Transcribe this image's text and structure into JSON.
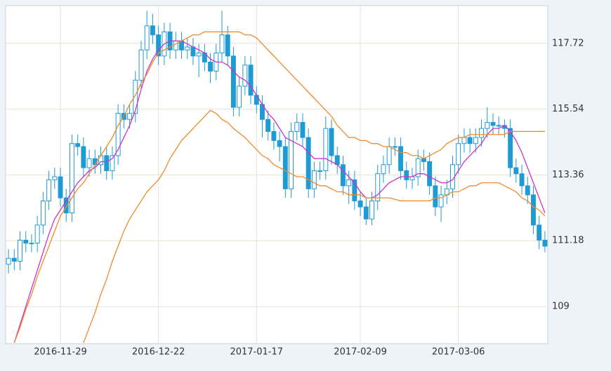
{
  "chart_data": {
    "type": "candlestick",
    "x": [
      null,
      null,
      null,
      null,
      null,
      null,
      null,
      null,
      null,
      "2016-11-29",
      null,
      null,
      null,
      null,
      null,
      null,
      null,
      null,
      null,
      null,
      null,
      null,
      null,
      null,
      null,
      null,
      "2016-12-22",
      null,
      null,
      null,
      null,
      null,
      null,
      null,
      null,
      null,
      null,
      null,
      null,
      null,
      null,
      null,
      null,
      "2017-01-17",
      null,
      null,
      null,
      null,
      null,
      null,
      null,
      null,
      null,
      null,
      null,
      null,
      null,
      null,
      null,
      null,
      null,
      "2017-02-09",
      null,
      null,
      null,
      null,
      null,
      null,
      null,
      null,
      null,
      null,
      null,
      null,
      null,
      null,
      null,
      null,
      "2017-03-06",
      null,
      null,
      null,
      null,
      null,
      null,
      null,
      null,
      null,
      null,
      null,
      null,
      null,
      null,
      null
    ],
    "open": [
      110.4,
      110.6,
      110.5,
      111.2,
      111.1,
      111.1,
      111.7,
      112.5,
      113.2,
      113.3,
      112.6,
      112.1,
      114.4,
      114.3,
      113.6,
      113.9,
      113.7,
      114.0,
      113.5,
      114.0,
      115.4,
      115.2,
      115.4,
      116.5,
      117.5,
      118.3,
      118.0,
      117.3,
      118.1,
      117.5,
      117.8,
      117.5,
      117.6,
      117.3,
      117.4,
      117.1,
      116.8,
      117.4,
      118.0,
      117.3,
      115.6,
      116.3,
      117.0,
      116.0,
      115.7,
      115.2,
      114.8,
      114.5,
      114.3,
      112.9,
      114.8,
      115.1,
      114.6,
      112.9,
      113.5,
      113.5,
      114.9,
      114.0,
      113.7,
      113.0,
      113.2,
      112.5,
      112.3,
      111.9,
      112.5,
      113.4,
      113.7,
      114.3,
      114.3,
      113.5,
      113.2,
      113.3,
      113.9,
      113.8,
      113.0,
      112.3,
      112.7,
      112.9,
      113.7,
      114.4,
      114.6,
      114.4,
      114.6,
      114.9,
      115.1,
      115.0,
      115.0,
      114.9,
      113.6,
      113.4,
      113.0,
      112.7,
      111.7,
      111.2
    ],
    "high": [
      110.9,
      110.9,
      111.5,
      111.5,
      111.4,
      112.0,
      112.8,
      113.5,
      113.6,
      113.6,
      112.9,
      114.7,
      114.7,
      114.6,
      114.2,
      114.2,
      114.3,
      114.3,
      114.3,
      115.7,
      115.7,
      115.7,
      116.8,
      117.8,
      118.8,
      118.7,
      118.3,
      118.4,
      118.4,
      118.1,
      118.1,
      117.9,
      117.9,
      117.7,
      117.7,
      117.4,
      117.7,
      118.8,
      118.3,
      117.6,
      116.6,
      117.3,
      117.3,
      116.3,
      116.0,
      115.5,
      115.1,
      114.8,
      114.6,
      115.1,
      115.4,
      115.4,
      114.9,
      113.8,
      113.8,
      115.3,
      115.2,
      114.3,
      114.0,
      113.5,
      113.5,
      112.8,
      112.6,
      112.8,
      113.7,
      114.0,
      114.6,
      114.6,
      114.6,
      113.8,
      113.6,
      114.2,
      114.2,
      114.1,
      113.3,
      113.0,
      113.2,
      114.0,
      114.7,
      114.9,
      114.9,
      114.9,
      115.2,
      115.6,
      115.4,
      115.3,
      115.2,
      115.2,
      113.9,
      113.7,
      113.3,
      113.0,
      112.0,
      111.5
    ],
    "low": [
      110.1,
      110.2,
      110.2,
      110.8,
      110.8,
      110.8,
      111.4,
      112.2,
      112.9,
      112.3,
      111.8,
      111.8,
      114.0,
      113.3,
      113.3,
      113.4,
      113.4,
      113.2,
      113.2,
      113.7,
      114.9,
      114.9,
      115.1,
      116.2,
      117.2,
      117.7,
      117.0,
      117.0,
      117.2,
      117.2,
      117.2,
      117.2,
      117.0,
      116.6,
      116.8,
      116.4,
      116.5,
      117.1,
      117.0,
      115.3,
      115.3,
      116.0,
      115.7,
      115.4,
      114.6,
      114.5,
      114.2,
      113.8,
      112.6,
      112.6,
      114.5,
      114.3,
      112.6,
      112.6,
      113.2,
      113.2,
      113.7,
      113.4,
      112.7,
      112.4,
      112.2,
      112.0,
      111.7,
      111.7,
      112.2,
      113.1,
      113.4,
      114.0,
      113.2,
      112.9,
      112.9,
      113.0,
      113.5,
      112.7,
      112.0,
      111.8,
      112.4,
      112.6,
      113.4,
      114.1,
      114.1,
      114.1,
      114.3,
      114.6,
      114.7,
      114.7,
      114.6,
      113.3,
      113.1,
      112.7,
      112.4,
      111.4,
      110.9,
      110.8
    ],
    "close": [
      110.6,
      110.5,
      111.2,
      111.1,
      111.1,
      111.7,
      112.5,
      113.2,
      113.3,
      112.6,
      112.1,
      114.4,
      114.3,
      113.6,
      113.9,
      113.7,
      114.0,
      113.5,
      114.0,
      115.4,
      115.2,
      115.4,
      116.5,
      117.5,
      118.3,
      118.0,
      117.3,
      118.1,
      117.5,
      117.8,
      117.5,
      117.6,
      117.3,
      117.4,
      117.1,
      116.8,
      117.4,
      118.0,
      117.3,
      115.6,
      116.3,
      117.0,
      116.0,
      115.7,
      115.2,
      114.8,
      114.5,
      114.3,
      112.9,
      114.8,
      115.1,
      114.6,
      112.9,
      113.5,
      113.5,
      114.9,
      114.0,
      113.7,
      113.0,
      113.2,
      112.5,
      112.3,
      111.9,
      112.5,
      113.4,
      113.7,
      114.3,
      114.3,
      113.5,
      113.2,
      113.3,
      113.9,
      113.8,
      113.0,
      112.3,
      112.7,
      112.9,
      113.7,
      114.4,
      114.6,
      114.4,
      114.6,
      114.9,
      115.1,
      115.0,
      115.0,
      114.9,
      113.6,
      113.4,
      113.0,
      112.7,
      111.7,
      111.2,
      111.0
    ],
    "up_color": "#ffffff",
    "down_color": "#1f9ad3",
    "edge_color": "#1f9ad3",
    "series": [
      {
        "color": "#cc33cc",
        "values": [
          null,
          107.8,
          108.4,
          109.0,
          109.6,
          110.2,
          110.8,
          111.4,
          111.9,
          112.2,
          112.5,
          112.8,
          113.1,
          113.3,
          113.5,
          113.6,
          113.8,
          113.8,
          113.9,
          114.2,
          114.6,
          115.0,
          115.5,
          116.2,
          116.8,
          117.2,
          117.5,
          117.7,
          117.8,
          117.8,
          117.8,
          117.7,
          117.6,
          117.5,
          117.4,
          117.2,
          117.1,
          117.1,
          117.0,
          116.8,
          116.6,
          116.5,
          116.3,
          116.0,
          115.7,
          115.4,
          115.2,
          114.9,
          114.6,
          114.5,
          114.4,
          114.3,
          114.1,
          113.9,
          113.9,
          113.9,
          113.8,
          113.7,
          113.5,
          113.3,
          113.1,
          112.8,
          112.6,
          112.6,
          112.7,
          112.9,
          113.1,
          113.2,
          113.3,
          113.3,
          113.3,
          113.4,
          113.4,
          113.3,
          113.2,
          113.1,
          113.1,
          113.2,
          113.5,
          113.8,
          114.0,
          114.2,
          114.4,
          114.7,
          114.9,
          114.9,
          115.0,
          114.8,
          114.5,
          114.1,
          113.6,
          113.1,
          112.6,
          112.1
        ]
      },
      {
        "color": "#f08a2c",
        "values": [
          null,
          107.8,
          108.3,
          108.9,
          109.4,
          110.0,
          110.5,
          111.0,
          111.5,
          112.0,
          112.3,
          112.6,
          112.9,
          113.1,
          113.4,
          113.7,
          114.0,
          114.3,
          114.6,
          115.0,
          115.3,
          115.7,
          116.0,
          116.4,
          116.7,
          117.1,
          117.4,
          117.5,
          117.6,
          117.7,
          117.8,
          117.9,
          118.0,
          118.0,
          118.1,
          118.1,
          118.1,
          118.1,
          118.1,
          118.1,
          118.1,
          118.0,
          118.0,
          117.9,
          117.7,
          117.5,
          117.3,
          117.1,
          116.9,
          116.7,
          116.5,
          116.3,
          116.1,
          115.9,
          115.7,
          115.5,
          115.3,
          115.0,
          114.8,
          114.6,
          114.6,
          114.5,
          114.5,
          114.4,
          114.4,
          114.3,
          114.3,
          114.2,
          114.1,
          114.1,
          114.0,
          114.0,
          113.9,
          114.0,
          114.1,
          114.2,
          114.4,
          114.5,
          114.6,
          114.6,
          114.7,
          114.7,
          114.7,
          114.7,
          114.7,
          114.7,
          114.7,
          114.8,
          114.8,
          114.8,
          114.8,
          114.8,
          114.8,
          114.8
        ]
      },
      {
        "color": "#f08a2c",
        "values": [
          null,
          null,
          null,
          null,
          null,
          null,
          null,
          null,
          null,
          null,
          null,
          null,
          null,
          107.8,
          108.3,
          108.8,
          109.4,
          109.9,
          110.5,
          111.0,
          111.5,
          111.9,
          112.2,
          112.5,
          112.8,
          113.0,
          113.2,
          113.5,
          113.9,
          114.2,
          114.5,
          114.7,
          114.9,
          115.1,
          115.3,
          115.5,
          115.4,
          115.2,
          115.1,
          114.9,
          114.75,
          114.6,
          114.4,
          114.2,
          114.0,
          113.9,
          113.7,
          113.6,
          113.5,
          113.4,
          113.3,
          113.3,
          113.2,
          113.1,
          113.0,
          113.0,
          112.9,
          112.8,
          112.8,
          112.7,
          112.7,
          112.7,
          112.6,
          112.6,
          112.6,
          112.6,
          112.6,
          112.55,
          112.5,
          112.5,
          112.5,
          112.5,
          112.5,
          112.5,
          112.6,
          112.6,
          112.7,
          112.8,
          112.8,
          112.9,
          113.0,
          113.0,
          113.1,
          113.1,
          113.1,
          113.1,
          113.0,
          112.9,
          112.8,
          112.6,
          112.5,
          112.3,
          112.2,
          112.0
        ]
      }
    ],
    "ylim": [
      107.77,
      118.97
    ],
    "yticks": [
      109,
      111.18,
      113.36,
      115.54,
      117.72
    ],
    "grid": true
  }
}
